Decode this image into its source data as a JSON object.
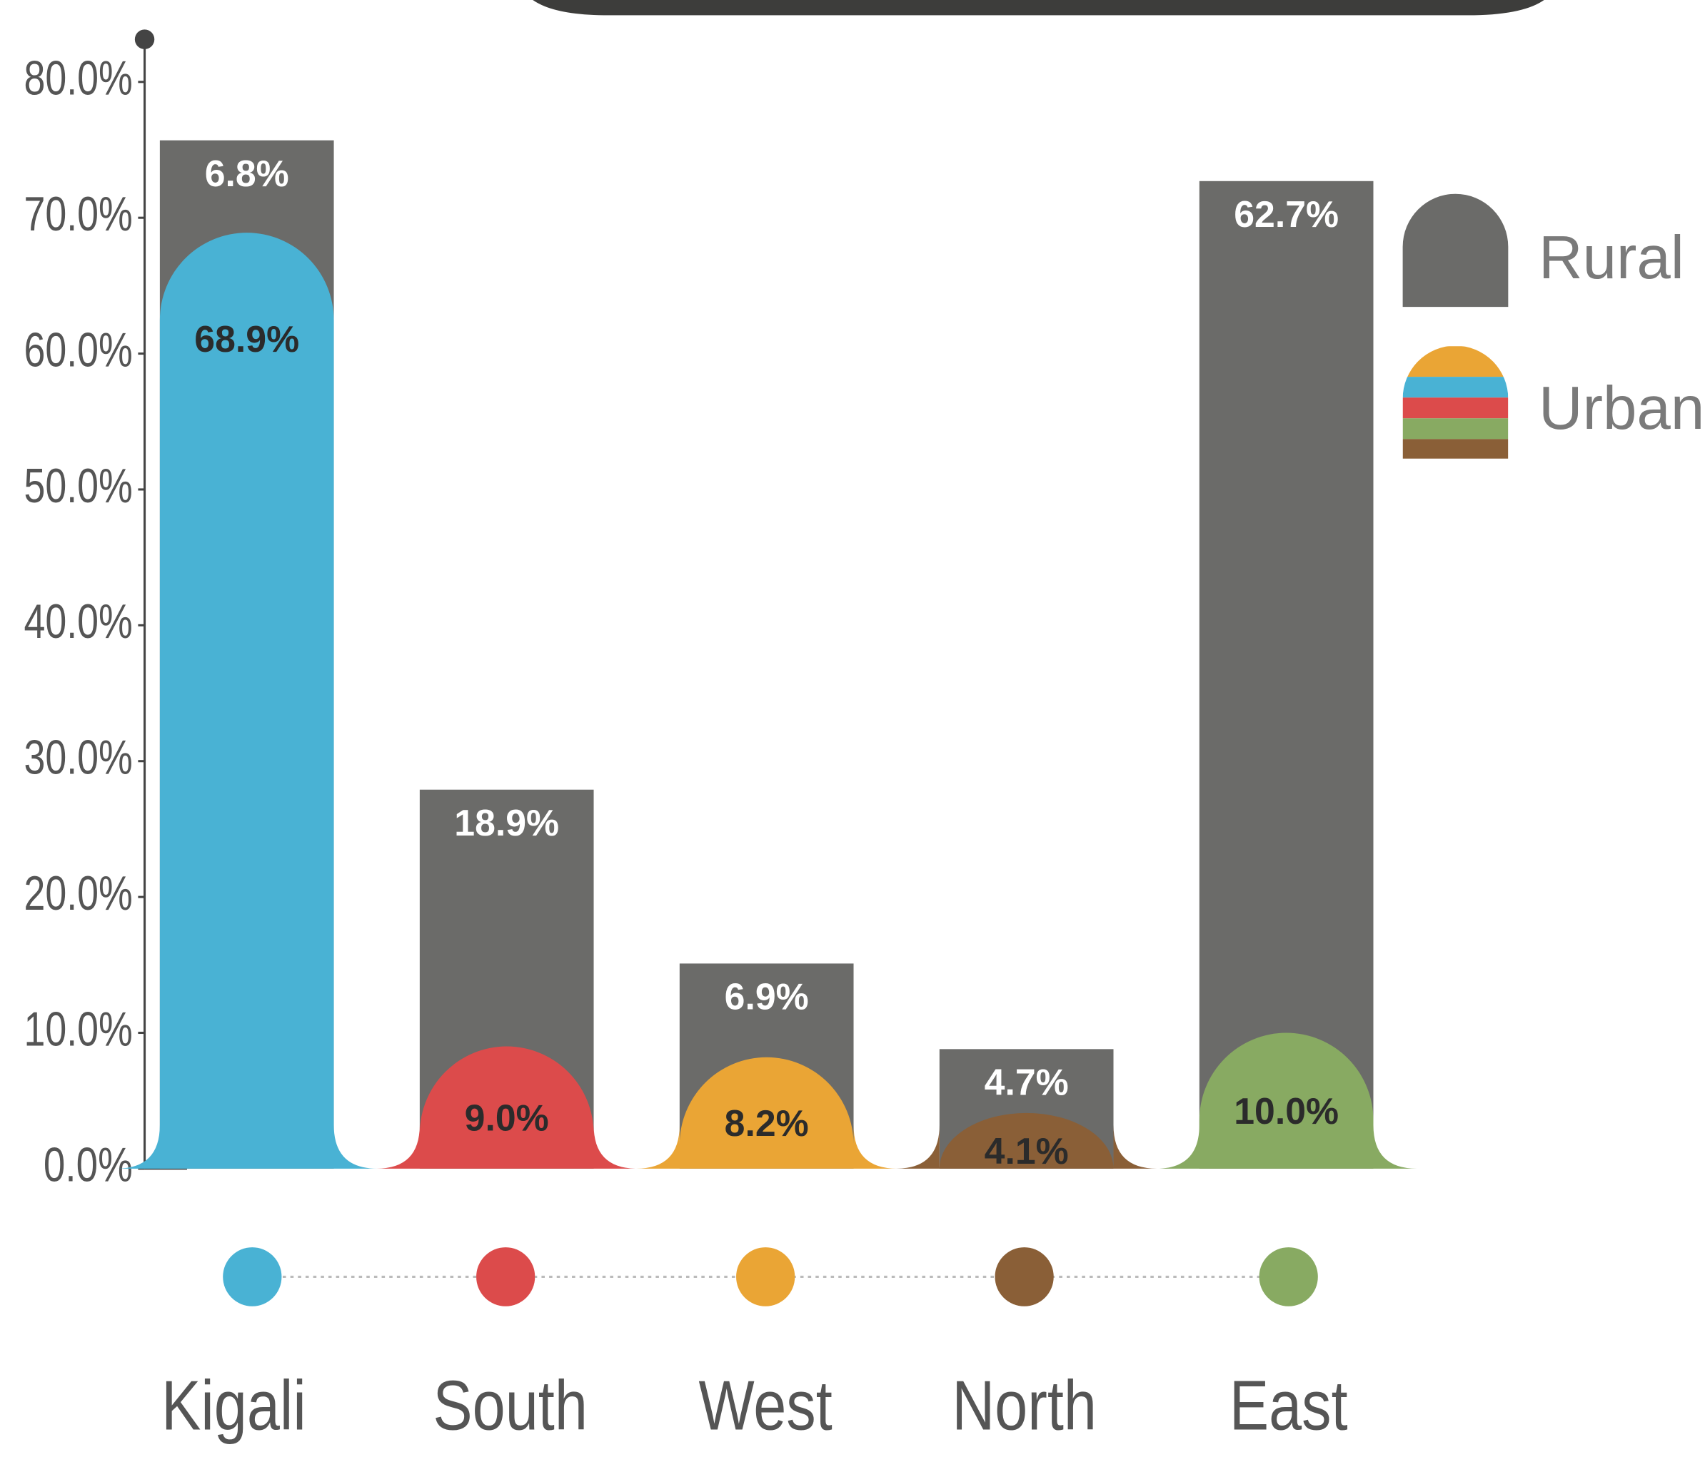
{
  "chart_data": {
    "type": "bar",
    "stacked": true,
    "categories": [
      "Kigali",
      "South",
      "West",
      "North",
      "East"
    ],
    "series": [
      {
        "name": "Rural",
        "color": "#6b6b69",
        "values": [
          6.8,
          18.9,
          6.9,
          4.7,
          62.7
        ],
        "value_labels": [
          "6.8%",
          "18.9%",
          "6.9%",
          "4.7%",
          "62.7%"
        ]
      },
      {
        "name": "Urban",
        "colors": [
          "#49b2d4",
          "#dc4b4b",
          "#eaa535",
          "#8a5f37",
          "#88aa62"
        ],
        "values": [
          68.9,
          9.0,
          8.2,
          4.1,
          10.0
        ],
        "value_labels": [
          "68.9%",
          "9.0%",
          "8.2%",
          "4.1%",
          "10.0%"
        ]
      }
    ],
    "ylim": [
      0,
      80
    ],
    "yticks": [
      {
        "value": 0,
        "label": "0.0%"
      },
      {
        "value": 10,
        "label": "10.0%"
      },
      {
        "value": 20,
        "label": "20.0%"
      },
      {
        "value": 30,
        "label": "30.0%"
      },
      {
        "value": 40,
        "label": "40.0%"
      },
      {
        "value": 50,
        "label": "50.0%"
      },
      {
        "value": 60,
        "label": "60.0%"
      },
      {
        "value": 70,
        "label": "70.0%"
      },
      {
        "value": 80,
        "label": "80.0%"
      }
    ],
    "legend": "right"
  }
}
